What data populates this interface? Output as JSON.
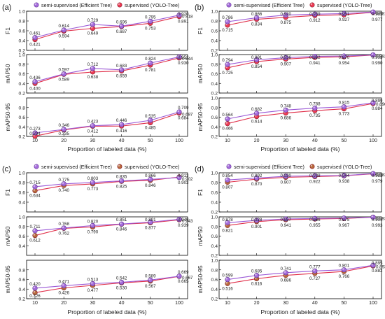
{
  "figure": {
    "x_categories": [
      "10",
      "20",
      "30",
      "40",
      "50",
      "100"
    ],
    "xlabel": "Proportion of labeled data (%)",
    "legend": {
      "semi": "semi-supervised (Efficient Tree)",
      "sup_ab": "supervised (YOLO-Tree)",
      "sup_cd": "supervised (YOLO-Tree)"
    },
    "colors": {
      "semi_line": "#9b59d6",
      "semi_marker": "#a46bdb",
      "sup_line_ab": "#e0304a",
      "sup_marker_ab": "#ee3b55",
      "sup_line_cd": "#e0304a",
      "sup_marker_cd": "#b86a3c",
      "label": "#1a1a1a"
    }
  },
  "chart_data": [
    {
      "panel": "(a)",
      "type": "line",
      "categories": [
        "10",
        "20",
        "30",
        "40",
        "50",
        "100"
      ],
      "xlabel": "Proportion of labeled data (%)",
      "subplots": [
        {
          "ylabel": "F1",
          "ylim": [
            0.2,
            1.0
          ],
          "yticks": [
            "0.2",
            "0.4",
            "0.6",
            "0.8",
            "1.0"
          ],
          "series": [
            {
              "name": "semi-supervised (Efficient Tree)",
              "values": [
                0.461,
                0.614,
                0.729,
                0.696,
                0.795,
                0.92
              ]
            },
            {
              "name": "supervised (YOLO-Tree)",
              "values": [
                0.421,
                0.594,
                0.649,
                0.687,
                0.753,
                0.891
              ]
            }
          ],
          "extra_labels": [
            "0.918"
          ]
        },
        {
          "ylabel": "mAP50",
          "ylim": [
            0.2,
            1.0
          ],
          "yticks": [
            "0.2",
            "0.4",
            "0.6",
            "0.8",
            "1.0"
          ],
          "series": [
            {
              "name": "semi-supervised (Efficient Tree)",
              "values": [
                0.436,
                0.597,
                0.712,
                0.683,
                0.824,
                0.952
              ]
            },
            {
              "name": "supervised (YOLO-Tree)",
              "values": [
                0.4,
                0.589,
                0.638,
                0.659,
                0.781,
                0.93
              ]
            }
          ],
          "extra_labels": [
            "0.944"
          ]
        },
        {
          "ylabel": "mAP50-95",
          "ylim": [
            0.2,
            1.0
          ],
          "yticks": [
            "0.2",
            "0.4",
            "0.6",
            "0.8"
          ],
          "series": [
            {
              "name": "semi-supervised (Efficient Tree)",
              "values": [
                0.273,
                0.346,
                0.423,
                0.446,
                0.535,
                0.709
              ]
            },
            {
              "name": "supervised (YOLO-Tree)",
              "values": [
                0.204,
                0.335,
                0.412,
                0.416,
                0.485,
                0.684
              ]
            }
          ],
          "extra_labels": [
            "0.687"
          ]
        }
      ]
    },
    {
      "panel": "(b)",
      "type": "line",
      "categories": [
        "10",
        "20",
        "30",
        "40",
        "50",
        "100"
      ],
      "xlabel": "Proportion of labeled data (%)",
      "subplots": [
        {
          "ylabel": "F1",
          "ylim": [
            0.2,
            1.0
          ],
          "yticks": [
            "0.2",
            "0.4",
            "0.6",
            "0.8",
            "1.0"
          ],
          "series": [
            {
              "name": "semi-supervised (Efficient Tree)",
              "values": [
                0.786,
                0.866,
                0.92,
                0.939,
                0.951,
                0.983
              ]
            },
            {
              "name": "supervised (YOLO-Tree)",
              "values": [
                0.715,
                0.834,
                0.875,
                0.912,
                0.927,
                0.977
              ]
            }
          ],
          "extra_labels": [
            "0.981"
          ]
        },
        {
          "ylabel": "mAP50",
          "ylim": [
            0.2,
            1.0
          ],
          "yticks": [
            "0.2",
            "0.4",
            "0.6",
            "0.8",
            "1.0"
          ],
          "series": [
            {
              "name": "semi-supervised (Efficient Tree)",
              "values": [
                0.794,
                0.891,
                0.936,
                0.962,
                0.97,
                0.993
              ]
            },
            {
              "name": "supervised (YOLO-Tree)",
              "values": [
                0.725,
                0.854,
                0.907,
                0.941,
                0.954,
                0.99
              ]
            }
          ],
          "extra_labels": [
            "0.992"
          ]
        },
        {
          "ylabel": "mAP50-95",
          "ylim": [
            0.2,
            1.0
          ],
          "yticks": [
            "0.2",
            "0.4",
            "0.6",
            "0.8",
            "1.0"
          ],
          "series": [
            {
              "name": "semi-supervised (Efficient Tree)",
              "values": [
                0.564,
                0.682,
                0.748,
                0.788,
                0.815,
                0.899
              ]
            },
            {
              "name": "supervised (YOLO-Tree)",
              "values": [
                0.466,
                0.614,
                0.686,
                0.735,
                0.773,
                0.884
              ]
            }
          ],
          "extra_labels": [
            "0.896"
          ]
        }
      ]
    },
    {
      "panel": "(c)",
      "type": "line",
      "categories": [
        "10",
        "20",
        "30",
        "40",
        "50",
        "100"
      ],
      "xlabel": "Proportion of labeled data (%)",
      "subplots": [
        {
          "ylabel": "F1",
          "ylim": [
            0.2,
            1.0
          ],
          "yticks": [
            "0.4",
            "0.6",
            "0.8",
            "1.0"
          ],
          "series": [
            {
              "name": "semi-supervised (Efficient Tree)",
              "values": [
                0.715,
                0.775,
                0.803,
                0.835,
                0.866,
                0.903
              ]
            },
            {
              "name": "supervised (YOLO-Tree)",
              "values": [
                0.634,
                0.74,
                0.773,
                0.825,
                0.846,
                0.913
              ]
            }
          ],
          "extra_labels": [
            "0.902"
          ]
        },
        {
          "ylabel": "mAP50",
          "ylim": [
            0.2,
            1.0
          ],
          "yticks": [
            "0.4",
            "0.6",
            "0.8",
            "1.0"
          ],
          "series": [
            {
              "name": "semi-supervised (Efficient Tree)",
              "values": [
                0.711,
                0.768,
                0.82,
                0.851,
                0.891,
                0.949
              ]
            },
            {
              "name": "supervised (YOLO-Tree)",
              "values": [
                0.612,
                0.762,
                0.79,
                0.846,
                0.877,
                0.939
              ]
            }
          ],
          "extra_labels": [
            "0.943"
          ]
        },
        {
          "ylabel": "mAP50-95",
          "ylim": [
            0.2,
            1.0
          ],
          "yticks": [
            "0.2",
            "0.4",
            "0.6",
            "0.8"
          ],
          "series": [
            {
              "name": "semi-supervised (Efficient Tree)",
              "values": [
                0.42,
                0.471,
                0.513,
                0.542,
                0.589,
                0.669
              ]
            },
            {
              "name": "supervised (YOLO-Tree)",
              "values": [
                0.326,
                0.426,
                0.477,
                0.53,
                0.567,
                0.665
              ]
            }
          ],
          "extra_labels": [
            "0.667"
          ]
        }
      ]
    },
    {
      "panel": "(d)",
      "type": "line",
      "categories": [
        "10",
        "20",
        "30",
        "40",
        "50",
        "100"
      ],
      "xlabel": "Proportion of labeled data (%)",
      "subplots": [
        {
          "ylabel": "F1",
          "ylim": [
            0.2,
            1.0
          ],
          "yticks": [
            "0.2",
            "0.4",
            "0.6",
            "0.8",
            "1.0"
          ],
          "series": [
            {
              "name": "semi-supervised (Efficient Tree)",
              "values": [
                0.854,
                0.892,
                0.93,
                0.938,
                0.944,
                0.983
              ]
            },
            {
              "name": "supervised (YOLO-Tree)",
              "values": [
                0.807,
                0.87,
                0.907,
                0.922,
                0.938,
                0.979
              ]
            }
          ],
          "extra_labels": [
            "0.983"
          ]
        },
        {
          "ylabel": "mAP50",
          "ylim": [
            0.2,
            1.0
          ],
          "yticks": [
            "0.2",
            "0.4",
            "0.6",
            "0.8",
            "1.0"
          ],
          "series": [
            {
              "name": "semi-supervised (Efficient Tree)",
              "values": [
                0.878,
                0.928,
                0.957,
                0.966,
                0.975,
                0.994
              ]
            },
            {
              "name": "supervised (YOLO-Tree)",
              "values": [
                0.821,
                0.901,
                0.941,
                0.955,
                0.967,
                0.993
              ]
            }
          ],
          "extra_labels": [
            "0.993"
          ]
        },
        {
          "ylabel": "mAP50-95",
          "ylim": [
            0.2,
            1.0
          ],
          "yticks": [
            "0.2",
            "0.4",
            "0.6",
            "0.8",
            "1.0"
          ],
          "series": [
            {
              "name": "semi-supervised (Efficient Tree)",
              "values": [
                0.599,
                0.685,
                0.741,
                0.777,
                0.801,
                0.895
              ]
            },
            {
              "name": "supervised (YOLO-Tree)",
              "values": [
                0.516,
                0.616,
                0.686,
                0.727,
                0.766,
                0.882
              ]
            }
          ],
          "extra_labels": [
            "0.893"
          ]
        }
      ]
    }
  ]
}
